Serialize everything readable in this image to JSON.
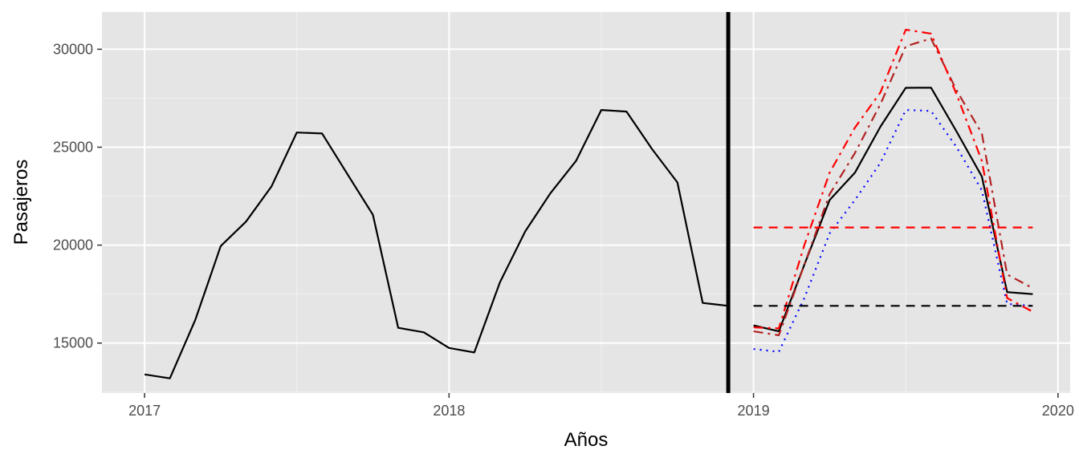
{
  "chart_data": {
    "type": "line",
    "title": "",
    "xlabel": "Años",
    "ylabel": "Pasajeros",
    "xlim": [
      2016.86,
      2020.04
    ],
    "ylim": [
      12450,
      31900
    ],
    "grid": true,
    "legend": "none",
    "x_ticks": [
      2017,
      2018,
      2019,
      2020
    ],
    "x_tick_labels": [
      "2017",
      "2018",
      "2019",
      "2020"
    ],
    "y_ticks": [
      15000,
      20000,
      25000,
      30000
    ],
    "y_tick_labels": [
      "15000",
      "20000",
      "25000",
      "30000"
    ],
    "vline": {
      "x": 2018.917,
      "color": "#000000"
    },
    "series": [
      {
        "color": "#000000",
        "dash": "solid",
        "x": [
          2017.0,
          2017.083,
          2017.167,
          2017.25,
          2017.333,
          2017.417,
          2017.5,
          2017.583,
          2017.667,
          2017.75,
          2017.833,
          2017.917,
          2018.0,
          2018.083,
          2018.167,
          2018.25,
          2018.333,
          2018.417,
          2018.5,
          2018.583,
          2018.667,
          2018.75,
          2018.833,
          2018.917
        ],
        "values": [
          13400,
          13200,
          16200,
          19950,
          21200,
          23000,
          25750,
          25700,
          23600,
          21550,
          15780,
          15550,
          14750,
          14520,
          18100,
          20700,
          22650,
          24300,
          26900,
          26820,
          24900,
          23200,
          17050,
          16900
        ]
      },
      {
        "color": "#000000",
        "dash": "solid",
        "x": [
          2019.0,
          2019.083,
          2019.167,
          2019.25,
          2019.333,
          2019.417,
          2019.5,
          2019.583,
          2019.667,
          2019.75,
          2019.833,
          2019.917
        ],
        "values": [
          15900,
          15600,
          19000,
          22300,
          23700,
          26050,
          28030,
          28040,
          25800,
          23500,
          17600,
          17500
        ]
      },
      {
        "color": "#0000ff",
        "dash": "dotted",
        "x": [
          2019.0,
          2019.083,
          2019.167,
          2019.25,
          2019.333,
          2019.417,
          2019.5,
          2019.583,
          2019.667,
          2019.75,
          2019.833,
          2019.917
        ],
        "values": [
          14700,
          14550,
          17300,
          20600,
          22300,
          24200,
          26900,
          26850,
          25000,
          22800,
          17000,
          16900
        ]
      },
      {
        "color": "#b22222",
        "dash": "dashdot",
        "x": [
          2019.0,
          2019.083,
          2019.167,
          2019.25,
          2019.333,
          2019.417,
          2019.5,
          2019.583,
          2019.667,
          2019.75,
          2019.833,
          2019.917
        ],
        "values": [
          15600,
          15400,
          19000,
          22600,
          24700,
          27200,
          30150,
          30550,
          27900,
          25700,
          18500,
          17800
        ]
      },
      {
        "color": "#ff0000",
        "dash": "dashdot",
        "x": [
          2019.0,
          2019.083,
          2019.167,
          2019.25,
          2019.333,
          2019.417,
          2019.5,
          2019.583,
          2019.667,
          2019.75,
          2019.833,
          2019.917
        ],
        "values": [
          15800,
          15750,
          20000,
          23700,
          26000,
          27800,
          31000,
          30800,
          27700,
          24300,
          17300,
          16600
        ]
      },
      {
        "color": "#ff0000",
        "dash": "dashed",
        "x": [
          2019.0,
          2019.917
        ],
        "values": [
          20900,
          20900
        ]
      },
      {
        "color": "#000000",
        "dash": "dashed",
        "x": [
          2019.0,
          2019.917
        ],
        "values": [
          16900,
          16900
        ]
      }
    ]
  }
}
